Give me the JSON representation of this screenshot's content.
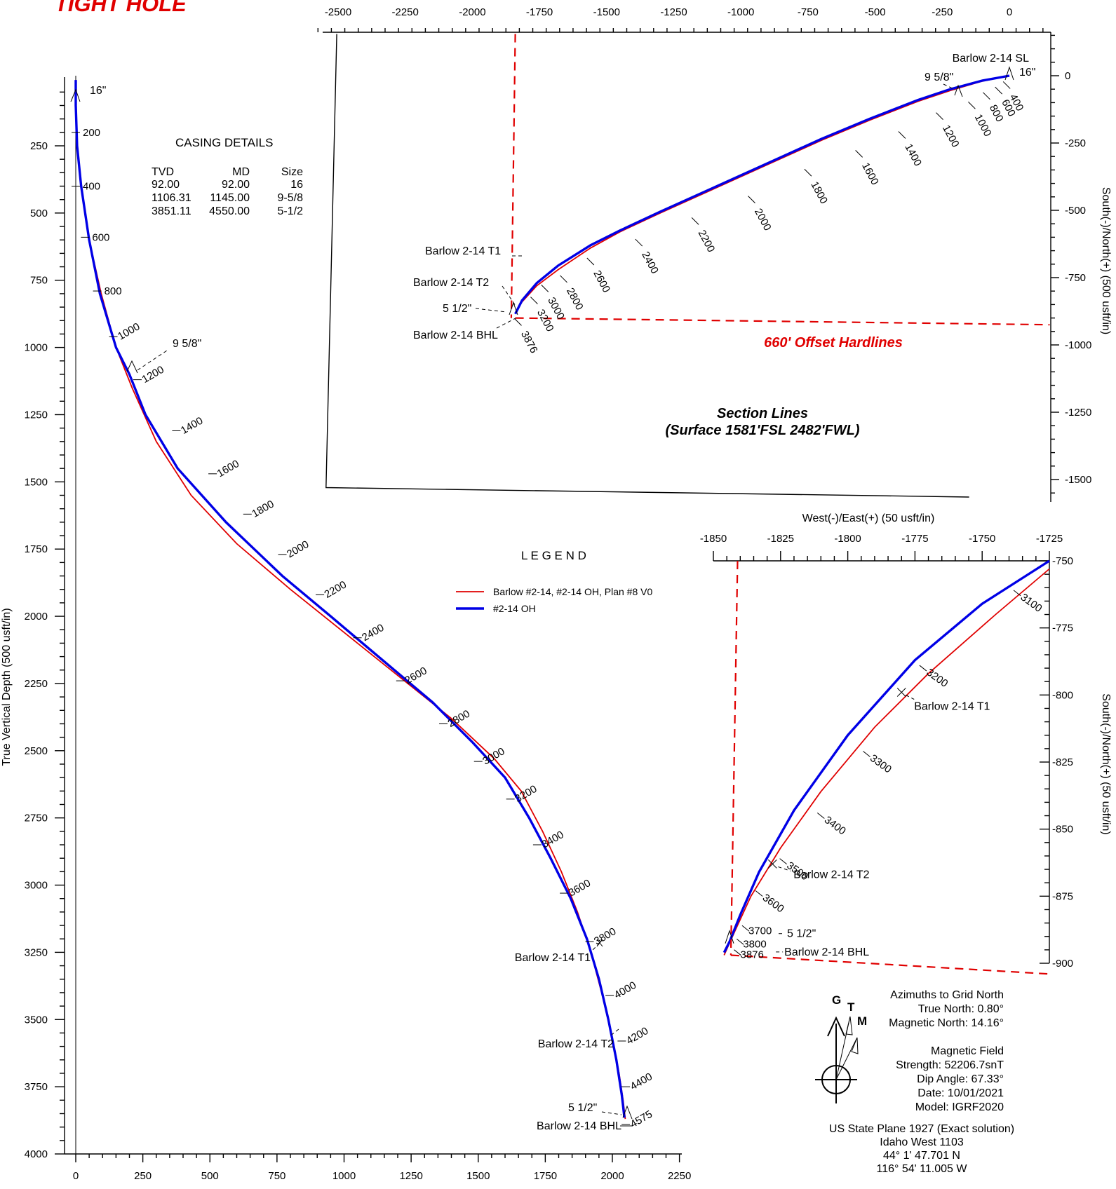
{
  "header": {
    "title": "TIGHT HOLE"
  },
  "casing": {
    "title": "CASING DETAILS",
    "headers": [
      "TVD",
      "MD",
      "Size"
    ],
    "rows": [
      [
        "92.00",
        "92.00",
        "16"
      ],
      [
        "1106.31",
        "1145.00",
        "9-5/8"
      ],
      [
        "3851.11",
        "4550.00",
        "5-1/2"
      ]
    ]
  },
  "legend": {
    "title": "L E G E N D",
    "items": [
      {
        "label": "Barlow #2-14, #2-14 OH, Plan #8 V0",
        "color": "#e00000"
      },
      {
        "label": "#2-14 OH",
        "color": "#0000e6"
      }
    ]
  },
  "colors": {
    "plan": "#e00000",
    "actual": "#0000e6",
    "hardline": "#e00000"
  },
  "annotations": {
    "hardlines": "660' Offset Hardlines",
    "section_title": "Section Lines",
    "section_sub": "(Surface 1581'FSL 2482'FWL)"
  },
  "north": {
    "grid": "G",
    "true": "T",
    "magnetic": "M",
    "lines": [
      "Azimuths to Grid North",
      "True North: 0.80°",
      "Magnetic North: 14.16°"
    ],
    "field_lines": [
      "Magnetic Field",
      "Strength: 52206.7snT",
      "Dip Angle: 67.33°",
      "Date: 10/01/2021",
      "Model: IGRF2020"
    ],
    "projection_lines": [
      "US State Plane 1927 (Exact solution)",
      "Idaho West 1103",
      "44° 1' 47.701 N",
      "116° 54' 11.005 W"
    ]
  },
  "chart_data": [
    {
      "type": "line",
      "name": "vertical-section",
      "ylabel": "True Vertical Depth (500 usft/in)",
      "xlabel": "",
      "xlim": [
        -45,
        2250
      ],
      "ylim": [
        4000,
        5
      ],
      "x_ticks": [
        0,
        250,
        500,
        750,
        1000,
        1250,
        1500,
        1750,
        2000,
        2250
      ],
      "y_ticks": [
        250,
        500,
        750,
        1000,
        1250,
        1500,
        1750,
        2000,
        2250,
        2500,
        2750,
        3000,
        3250,
        3500,
        3750,
        4000
      ],
      "series": [
        {
          "role": "plan",
          "x": [
            0,
            0,
            5,
            20,
            50,
            95,
            150,
            210,
            300,
            430,
            600,
            800,
            1000,
            1200,
            1400,
            1560,
            1660,
            1740,
            1810,
            1870,
            1920,
            1960,
            1995,
            2025,
            2040,
            2048
          ],
          "y": [
            5,
            100,
            250,
            400,
            600,
            800,
            1000,
            1150,
            1350,
            1550,
            1730,
            1900,
            2060,
            2220,
            2380,
            2530,
            2650,
            2800,
            2950,
            3100,
            3250,
            3400,
            3550,
            3700,
            3800,
            3870
          ]
        },
        {
          "role": "actual",
          "x": [
            0,
            0,
            5,
            20,
            50,
            90,
            150,
            200,
            260,
            380,
            560,
            770,
            950,
            1140,
            1330,
            1480,
            1600,
            1690,
            1770,
            1845,
            1905,
            1950,
            1985,
            2015,
            2035,
            2045
          ],
          "y": [
            5,
            100,
            250,
            400,
            600,
            800,
            1000,
            1100,
            1250,
            1450,
            1650,
            1850,
            2000,
            2160,
            2320,
            2470,
            2600,
            2750,
            2900,
            3050,
            3200,
            3350,
            3500,
            3650,
            3780,
            3865
          ]
        }
      ],
      "md_labels": [
        {
          "text": "200",
          "x": 0,
          "y": 200
        },
        {
          "text": "400",
          "x": 0,
          "y": 400
        },
        {
          "text": "600",
          "x": 35,
          "y": 590
        },
        {
          "text": "800",
          "x": 80,
          "y": 790
        },
        {
          "text": "1000",
          "x": 140,
          "y": 960
        },
        {
          "text": "1200",
          "x": 230,
          "y": 1120
        },
        {
          "text": "1400",
          "x": 375,
          "y": 1310
        },
        {
          "text": "1600",
          "x": 510,
          "y": 1470
        },
        {
          "text": "1800",
          "x": 640,
          "y": 1620
        },
        {
          "text": "2000",
          "x": 770,
          "y": 1770
        },
        {
          "text": "2200",
          "x": 910,
          "y": 1920
        },
        {
          "text": "2400",
          "x": 1050,
          "y": 2080
        },
        {
          "text": "2600",
          "x": 1210,
          "y": 2240
        },
        {
          "text": "2800",
          "x": 1370,
          "y": 2400
        },
        {
          "text": "3000",
          "x": 1500,
          "y": 2540
        },
        {
          "text": "3200",
          "x": 1620,
          "y": 2680
        },
        {
          "text": "3400",
          "x": 1720,
          "y": 2850
        },
        {
          "text": "3600",
          "x": 1820,
          "y": 3030
        },
        {
          "text": "3800",
          "x": 1915,
          "y": 3210
        },
        {
          "text": "4000",
          "x": 1990,
          "y": 3410
        },
        {
          "text": "4200",
          "x": 2035,
          "y": 3580
        },
        {
          "text": "4400",
          "x": 2050,
          "y": 3750
        },
        {
          "text": "4575",
          "x": 2050,
          "y": 3890
        }
      ],
      "annotations": [
        {
          "text": "16\"",
          "x": 0,
          "y": 92
        },
        {
          "text": "9 5/8\"",
          "x": 210,
          "y": 1106
        },
        {
          "text": "Barlow 2-14 T1",
          "x": 1945,
          "y": 3230
        },
        {
          "text": "Barlow 2-14 T2",
          "x": 2020,
          "y": 3540
        },
        {
          "text": "5 1/2\"",
          "x": 2045,
          "y": 3851
        },
        {
          "text": "Barlow 2-14 BHL",
          "x": 2048,
          "y": 3870
        }
      ]
    },
    {
      "type": "line",
      "name": "plan-view",
      "ylabel": "South(-)/North(+) (500 usft/in)",
      "xlabel": "West(-)/East(+) (50 usft/in)",
      "xlim": [
        -2625,
        150
      ],
      "ylim": [
        -1580,
        170
      ],
      "x_ticks": [
        -2500,
        -2250,
        -2000,
        -1750,
        -1500,
        -1250,
        -1000,
        -750,
        -500,
        -250,
        0
      ],
      "y_ticks": [
        0,
        -250,
        -500,
        -750,
        -1000,
        -1250,
        -1500
      ],
      "series": [
        {
          "role": "plan",
          "x": [
            0,
            -100,
            -220,
            -340,
            -520,
            -700,
            -900,
            -1100,
            -1300,
            -1450,
            -1560,
            -1680,
            -1760,
            -1815,
            -1840
          ],
          "y": [
            0,
            -20,
            -55,
            -95,
            -165,
            -240,
            -330,
            -420,
            -510,
            -580,
            -640,
            -720,
            -780,
            -840,
            -880
          ]
        },
        {
          "role": "actual",
          "x": [
            0,
            -100,
            -220,
            -340,
            -520,
            -700,
            -900,
            -1100,
            -1300,
            -1450,
            -1560,
            -1680,
            -1760,
            -1815,
            -1840
          ],
          "y": [
            0,
            -18,
            -50,
            -90,
            -160,
            -235,
            -325,
            -415,
            -505,
            -575,
            -630,
            -705,
            -770,
            -835,
            -885
          ]
        },
        {
          "role": "section-lines",
          "x": [
            -2505,
            -2545,
            -150
          ],
          "y": [
            155,
            -1530,
            -1565
          ]
        },
        {
          "role": "hardline-west",
          "x": [
            -1840,
            -1855
          ],
          "y": [
            155,
            -900
          ]
        },
        {
          "role": "hardline-south",
          "x": [
            -1840,
            150
          ],
          "y": [
            -900,
            -925
          ]
        }
      ],
      "md_labels": [
        {
          "text": "400",
          "x": -10,
          "y": -35
        },
        {
          "text": "600",
          "x": -40,
          "y": -55
        },
        {
          "text": "800",
          "x": -85,
          "y": -75
        },
        {
          "text": "1000",
          "x": -140,
          "y": -110
        },
        {
          "text": "1200",
          "x": -260,
          "y": -150
        },
        {
          "text": "1400",
          "x": -400,
          "y": -220
        },
        {
          "text": "1600",
          "x": -560,
          "y": -290
        },
        {
          "text": "1800",
          "x": -750,
          "y": -360
        },
        {
          "text": "2000",
          "x": -960,
          "y": -460
        },
        {
          "text": "2200",
          "x": -1170,
          "y": -540
        },
        {
          "text": "2400",
          "x": -1380,
          "y": -620
        },
        {
          "text": "2600",
          "x": -1560,
          "y": -690
        },
        {
          "text": "2800",
          "x": -1660,
          "y": -755
        },
        {
          "text": "3000",
          "x": -1730,
          "y": -790
        },
        {
          "text": "3200",
          "x": -1770,
          "y": -835
        },
        {
          "text": "3876",
          "x": -1830,
          "y": -915
        }
      ],
      "annotations": [
        {
          "text": "Barlow 2-14 SL",
          "x": 0,
          "y": 0
        },
        {
          "text": "16\"",
          "x": 0,
          "y": 0
        },
        {
          "text": "9 5/8\"",
          "x": -200,
          "y": -60
        },
        {
          "text": "Barlow 2-14 T1",
          "x": -1780,
          "y": -780
        },
        {
          "text": "Barlow 2-14 T2",
          "x": -1830,
          "y": -860
        },
        {
          "text": "5 1/2\"",
          "x": -1845,
          "y": -888
        },
        {
          "text": "Barlow 2-14 BHL",
          "x": -1840,
          "y": -900
        }
      ]
    },
    {
      "type": "line",
      "name": "plan-view-detail",
      "ylabel": "South(-)/North(+) (50 usft/in)",
      "xlabel": "",
      "xlim": [
        -1850,
        -1725
      ],
      "ylim": [
        -900,
        -750
      ],
      "x_ticks": [
        -1850,
        -1825,
        -1800,
        -1775,
        -1750,
        -1725
      ],
      "y_ticks": [
        -750,
        -775,
        -800,
        -825,
        -850,
        -875,
        -900
      ],
      "series": [
        {
          "role": "plan",
          "x": [
            -1725,
            -1745,
            -1770,
            -1790,
            -1810,
            -1825,
            -1836,
            -1842,
            -1846
          ],
          "y": [
            -753,
            -770,
            -792,
            -812,
            -836,
            -857,
            -875,
            -888,
            -897
          ]
        },
        {
          "role": "actual",
          "x": [
            -1725,
            -1750,
            -1775,
            -1800,
            -1820,
            -1833,
            -1840,
            -1844,
            -1846
          ],
          "y": [
            -750,
            -766,
            -787,
            -815,
            -843,
            -866,
            -882,
            -892,
            -896
          ]
        },
        {
          "role": "hardline-west",
          "x": [
            -1841,
            -1843.5
          ],
          "y": [
            -750,
            -897
          ]
        },
        {
          "role": "hardline-south",
          "x": [
            -1843.5,
            -1725
          ],
          "y": [
            -897,
            -904
          ]
        }
      ],
      "md_labels": [
        {
          "text": "3100",
          "x": -1737,
          "y": -762
        },
        {
          "text": "3200",
          "x": -1772,
          "y": -790
        },
        {
          "text": "3300",
          "x": -1793,
          "y": -822
        },
        {
          "text": "3400",
          "x": -1810,
          "y": -845
        },
        {
          "text": "3500",
          "x": -1824,
          "y": -862
        },
        {
          "text": "3600",
          "x": -1833,
          "y": -874
        },
        {
          "text": "3700",
          "x": -1838,
          "y": -887
        },
        {
          "text": "3800",
          "x": -1840,
          "y": -892
        },
        {
          "text": "3876",
          "x": -1841,
          "y": -896
        }
      ],
      "annotations": [
        {
          "text": "Barlow 2-14 T1",
          "x": -1780,
          "y": -799
        },
        {
          "text": "Barlow 2-14 T2",
          "x": -1828,
          "y": -863
        },
        {
          "text": "5 1/2\"",
          "x": -1844,
          "y": -890
        },
        {
          "text": "Barlow 2-14 BHL",
          "x": -1845,
          "y": -895
        }
      ]
    }
  ]
}
